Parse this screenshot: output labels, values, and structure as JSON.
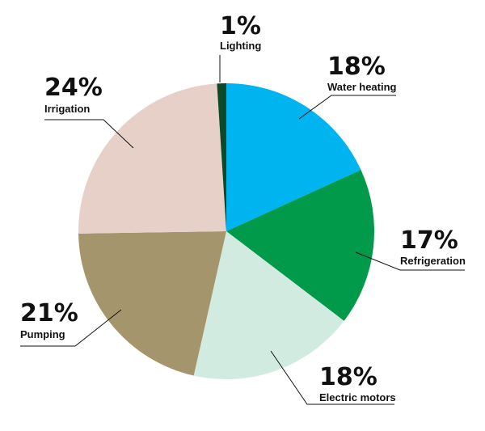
{
  "chart_data": {
    "type": "pie",
    "title": "",
    "start_angle_deg": 0,
    "direction": "clockwise",
    "slices": [
      {
        "name": "Water heating",
        "value": 18,
        "label": "18%",
        "color": "#00b4f0"
      },
      {
        "name": "Refrigeration",
        "value": 17,
        "label": "17%",
        "color": "#009a4a"
      },
      {
        "name": "Electric motors",
        "value": 18,
        "label": "18%",
        "color": "#d2ebe1"
      },
      {
        "name": "Pumping",
        "value": 21,
        "label": "21%",
        "color": "#a5956c"
      },
      {
        "name": "Irrigation",
        "value": 24,
        "label": "24%",
        "color": "#e6d0c8"
      },
      {
        "name": "Lighting",
        "value": 1,
        "label": "1%",
        "color": "#0a4a28"
      }
    ]
  }
}
